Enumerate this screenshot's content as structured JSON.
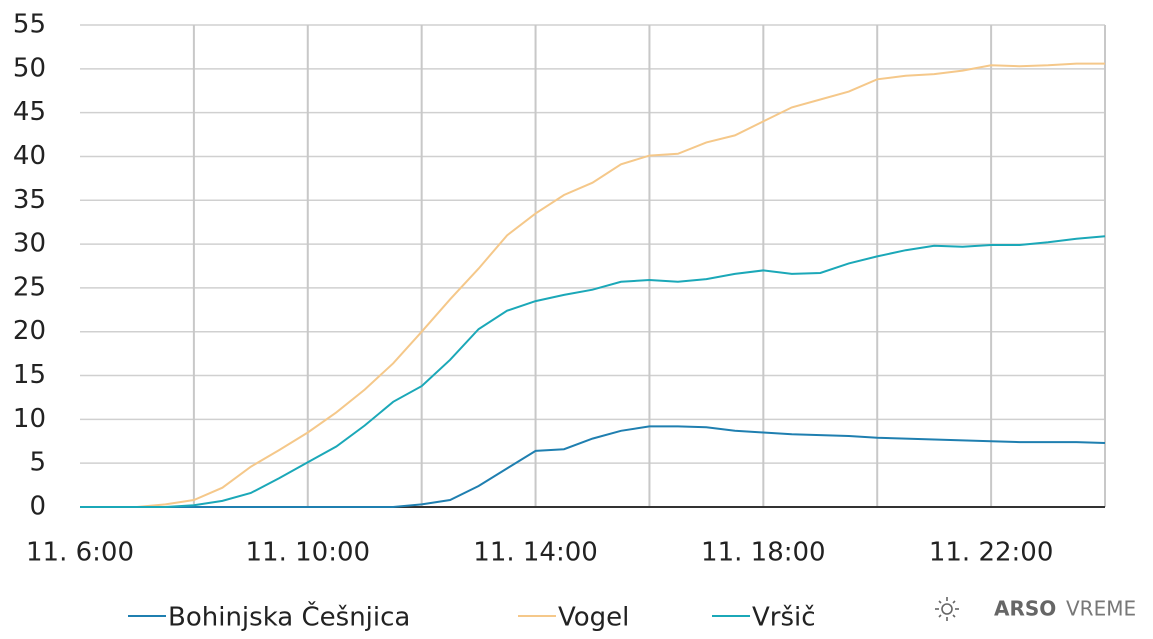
{
  "chart_data": {
    "type": "line",
    "categories": [
      "11. 6:00",
      null,
      null,
      null,
      null,
      null,
      null,
      null,
      "11. 10:00",
      null,
      null,
      null,
      null,
      null,
      null,
      null,
      "11. 14:00",
      null,
      null,
      null,
      null,
      null,
      null,
      null,
      "11. 18:00",
      null,
      null,
      null,
      null,
      null,
      null,
      null,
      "11. 22:00",
      null,
      null,
      null,
      null
    ],
    "series": [
      {
        "name": "Bohinjska Češnjica",
        "color": "#1f7fb0",
        "values": [
          0,
          0,
          0,
          0,
          0,
          0,
          0,
          0,
          0,
          0,
          0,
          0,
          0.3,
          0.8,
          2.4,
          4.4,
          6.4,
          6.6,
          7.8,
          8.7,
          9.2,
          9.2,
          9.1,
          8.7,
          8.5,
          8.3,
          8.2,
          8.1,
          7.9,
          7.8,
          7.7,
          7.6,
          7.5,
          7.4,
          7.4,
          7.4,
          7.3
        ]
      },
      {
        "name": "Vogel",
        "color": "#f5c88a",
        "values": [
          0,
          0,
          0,
          0.3,
          0.8,
          2.2,
          4.6,
          6.5,
          8.5,
          10.8,
          13.4,
          16.4,
          20.0,
          23.7,
          27.2,
          31.0,
          33.5,
          35.6,
          37.0,
          39.1,
          40.1,
          40.3,
          41.6,
          42.4,
          44.0,
          45.6,
          46.5,
          47.4,
          48.8,
          49.2,
          49.4,
          49.8,
          50.4,
          50.3,
          50.4,
          50.6,
          50.6
        ]
      },
      {
        "name": "Vršič",
        "color": "#1ba8b8",
        "values": [
          0,
          0,
          0,
          0,
          0.2,
          0.7,
          1.6,
          3.3,
          5.1,
          6.9,
          9.3,
          12.0,
          13.8,
          16.8,
          20.3,
          22.4,
          23.5,
          24.2,
          24.8,
          25.7,
          25.9,
          25.7,
          26.0,
          26.6,
          27.0,
          26.6,
          26.7,
          27.8,
          28.6,
          29.3,
          29.8,
          29.7,
          29.9,
          29.9,
          30.2,
          30.6,
          30.9
        ]
      }
    ],
    "ylim": [
      0,
      55
    ],
    "yticks": [
      0,
      5,
      10,
      15,
      20,
      25,
      30,
      35,
      40,
      45,
      50,
      55
    ],
    "grid": true,
    "legend": "bottom",
    "branding": {
      "bold": "ARSO",
      "light": "VREME"
    }
  }
}
